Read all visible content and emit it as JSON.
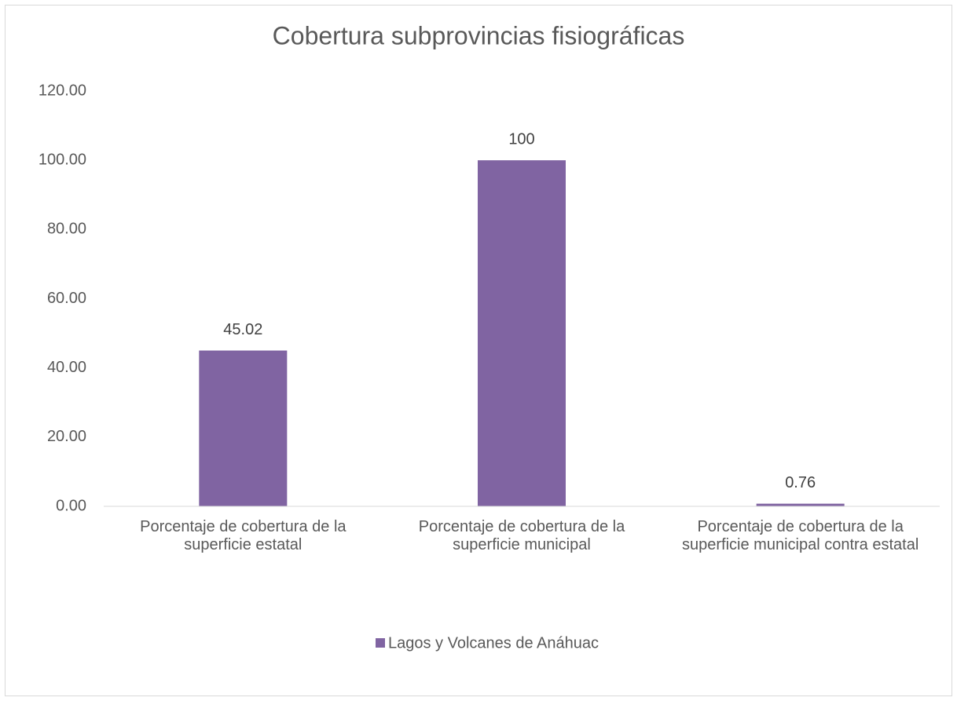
{
  "chart_data": {
    "type": "bar",
    "title": "Cobertura subprovincias fisiográficas",
    "categories": [
      "Porcentaje de cobertura de la superficie estatal",
      "Porcentaje de cobertura de la superficie municipal",
      "Porcentaje de cobertura de la superficie municipal contra estatal"
    ],
    "series": [
      {
        "name": "Lagos y Volcanes de Anáhuac",
        "color": "#8064a2",
        "values": [
          45.02,
          100,
          0.76
        ]
      }
    ],
    "ylim": [
      0,
      120
    ],
    "yticks": [
      {
        "value": 0,
        "label": "0.00"
      },
      {
        "value": 20,
        "label": "20.00"
      },
      {
        "value": 40,
        "label": "40.00"
      },
      {
        "value": 60,
        "label": "60.00"
      },
      {
        "value": 80,
        "label": "80.00"
      },
      {
        "value": 100,
        "label": "100.00"
      },
      {
        "value": 120,
        "label": "120.00"
      }
    ],
    "grid": false,
    "legend": "bottom"
  }
}
